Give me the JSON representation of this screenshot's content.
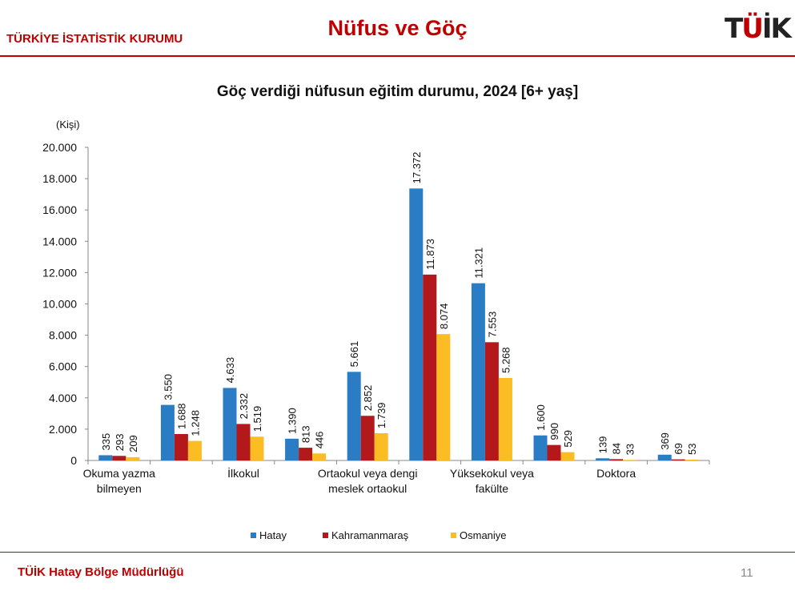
{
  "header": {
    "org": "TÜRKİYE İSTATİSTİK KURUMU",
    "title": "Nüfus ve Göç",
    "logo": "TÜİK"
  },
  "footer": {
    "text": "TÜİK Hatay Bölge Müdürlüğü",
    "page": "11"
  },
  "colors": {
    "Hatay": "#2a7dc4",
    "Kahramanmaraş": "#b3191a",
    "Osmaniye": "#fbbc24",
    "accent": "#c00000"
  },
  "chart_data": {
    "type": "bar",
    "title": "Göç verdiği nüfusun eğitim durumu, 2024  [6+ yaş]",
    "ylabel": "(Kişi)",
    "ylim": [
      0,
      20000
    ],
    "yticks": [
      "0",
      "2.000",
      "4.000",
      "6.000",
      "8.000",
      "10.000",
      "12.000",
      "14.000",
      "16.000",
      "18.000",
      "20.000"
    ],
    "categories": [
      [
        "Okuma yazma",
        "bilmeyen"
      ],
      [],
      [
        "İlkokul"
      ],
      [],
      [
        "Ortaokul veya dengi",
        "meslek ortaokul"
      ],
      [],
      [
        "Yüksekokul veya",
        "fakülte"
      ],
      [],
      [
        "Doktora"
      ],
      []
    ],
    "series": [
      {
        "name": "Hatay",
        "values": [
          335,
          3550,
          4633,
          1390,
          5661,
          17372,
          11321,
          1600,
          139,
          369
        ],
        "labels": [
          "335",
          "3.550",
          "4.633",
          "1.390",
          "5.661",
          "17.372",
          "11.321",
          "1.600",
          "139",
          "369"
        ]
      },
      {
        "name": "Kahramanmaraş",
        "values": [
          293,
          1688,
          2332,
          813,
          2852,
          11873,
          7553,
          990,
          84,
          69
        ],
        "labels": [
          "293",
          "1.688",
          "2.332",
          "813",
          "2.852",
          "11.873",
          "7.553",
          "990",
          "84",
          "69"
        ]
      },
      {
        "name": "Osmaniye",
        "values": [
          209,
          1248,
          1519,
          446,
          1739,
          8074,
          5268,
          529,
          33,
          53
        ],
        "labels": [
          "209",
          "1.248",
          "1.519",
          "446",
          "1.739",
          "8.074",
          "5.268",
          "529",
          "33",
          "53"
        ]
      }
    ],
    "legend": "bottom"
  }
}
